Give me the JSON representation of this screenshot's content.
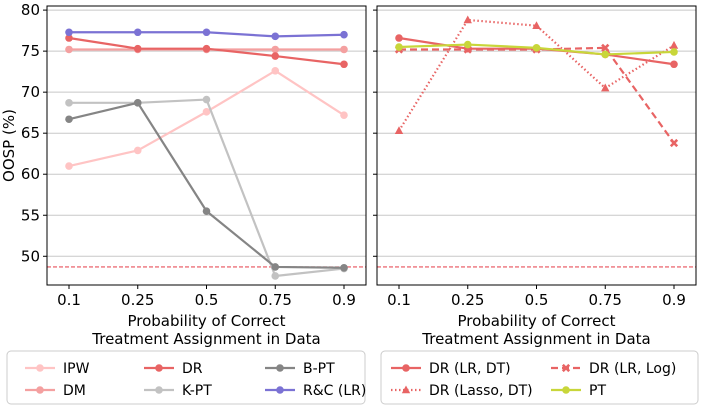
{
  "chart_data": [
    {
      "type": "line",
      "ylabel": "OOSP (%)",
      "xlabel_line1": "Probability of Correct",
      "xlabel_line2": "Treatment Assignment in Data",
      "x": [
        0.1,
        0.25,
        0.5,
        0.75,
        0.9
      ],
      "x_tick_labels": [
        "0.1",
        "0.25",
        "0.5",
        "0.75",
        "0.9"
      ],
      "ylim": [
        46.5,
        80.5
      ],
      "y_ticks": [
        50,
        55,
        60,
        65,
        70,
        75,
        80
      ],
      "y_tick_labels": [
        "50",
        "55",
        "60",
        "65",
        "70",
        "75",
        "80"
      ],
      "grid": "horizontal",
      "reference_line": {
        "y": 48.7,
        "color": "#e8505b",
        "style": "dashed"
      },
      "series": [
        {
          "name": "IPW",
          "color": "#ffc4c4",
          "style": "solid",
          "marker": "circle",
          "values": [
            61.0,
            62.9,
            67.6,
            72.6,
            67.2
          ]
        },
        {
          "name": "DM",
          "color": "#f4a0a0",
          "style": "solid",
          "marker": "circle",
          "values": [
            75.2,
            75.2,
            75.2,
            75.2,
            75.2
          ]
        },
        {
          "name": "DR",
          "color": "#e86464",
          "style": "solid",
          "marker": "circle",
          "values": [
            76.6,
            75.3,
            75.3,
            74.4,
            73.4
          ]
        },
        {
          "name": "K-PT",
          "color": "#c2c2c2",
          "style": "solid",
          "marker": "circle",
          "values": [
            68.7,
            68.7,
            69.1,
            47.6,
            48.5
          ]
        },
        {
          "name": "B-PT",
          "color": "#858585",
          "style": "solid",
          "marker": "circle",
          "values": [
            66.7,
            68.7,
            55.5,
            48.7,
            48.6
          ]
        },
        {
          "name": "R&C (LR)",
          "color": "#7b72d4",
          "style": "solid",
          "marker": "circle",
          "values": [
            77.3,
            77.3,
            77.3,
            76.8,
            77.0
          ]
        }
      ],
      "legend": {
        "position": "below",
        "rows": [
          [
            "IPW",
            "DR",
            "B-PT"
          ],
          [
            "DM",
            "K-PT",
            "R&C (LR)"
          ]
        ]
      }
    },
    {
      "type": "line",
      "xlabel_line1": "Probability of Correct",
      "xlabel_line2": "Treatment Assignment in Data",
      "x": [
        0.1,
        0.25,
        0.5,
        0.75,
        0.9
      ],
      "x_tick_labels": [
        "0.1",
        "0.25",
        "0.5",
        "0.75",
        "0.9"
      ],
      "ylim": [
        46.5,
        80.5
      ],
      "grid": "horizontal",
      "reference_line": {
        "y": 48.7,
        "color": "#e8505b",
        "style": "dashed"
      },
      "series": [
        {
          "name": "DR (LR, DT)",
          "color": "#e86464",
          "style": "solid",
          "marker": "circle",
          "values": [
            76.6,
            75.3,
            75.3,
            74.6,
            73.4
          ]
        },
        {
          "name": "DR (Lasso, DT)",
          "color": "#e86464",
          "style": "dotted",
          "marker": "triangle",
          "values": [
            65.3,
            78.8,
            78.1,
            70.5,
            75.7
          ]
        },
        {
          "name": "DR (LR, Log)",
          "color": "#e86464",
          "style": "dashed",
          "marker": "x",
          "values": [
            75.2,
            75.2,
            75.2,
            75.4,
            63.8
          ]
        },
        {
          "name": "PT",
          "color": "#c8d63a",
          "style": "solid",
          "marker": "circle",
          "values": [
            75.5,
            75.8,
            75.4,
            74.6,
            74.9
          ]
        }
      ],
      "legend": {
        "position": "below",
        "rows": [
          [
            "DR (LR, DT)",
            "DR (LR, Log)"
          ],
          [
            "DR (Lasso, DT)",
            "PT"
          ]
        ]
      }
    }
  ]
}
